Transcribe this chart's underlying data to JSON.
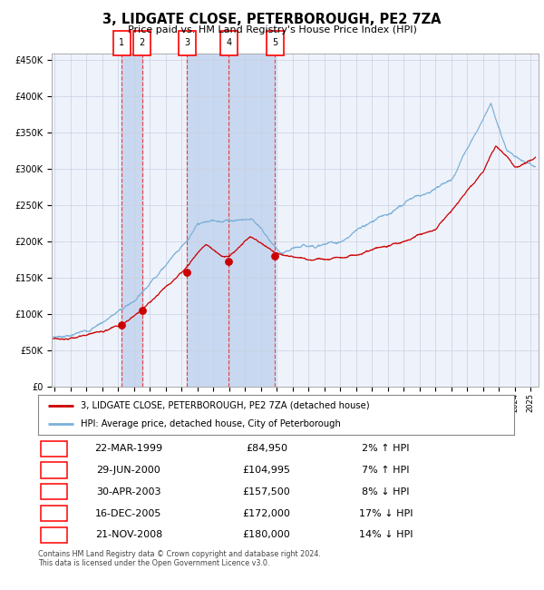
{
  "title": "3, LIDGATE CLOSE, PETERBOROUGH, PE2 7ZA",
  "subtitle": "Price paid vs. HM Land Registry's House Price Index (HPI)",
  "legend_label_red": "3, LIDGATE CLOSE, PETERBOROUGH, PE2 7ZA (detached house)",
  "legend_label_blue": "HPI: Average price, detached house, City of Peterborough",
  "footer1": "Contains HM Land Registry data © Crown copyright and database right 2024.",
  "footer2": "This data is licensed under the Open Government Licence v3.0.",
  "transactions": [
    {
      "id": 1,
      "date": "22-MAR-1999",
      "price": 84950,
      "pct": "2%",
      "dir": "↑",
      "year": 1999.22
    },
    {
      "id": 2,
      "date": "29-JUN-2000",
      "price": 104995,
      "pct": "7%",
      "dir": "↑",
      "year": 2000.5
    },
    {
      "id": 3,
      "date": "30-APR-2003",
      "price": 157500,
      "pct": "8%",
      "dir": "↓",
      "year": 2003.33
    },
    {
      "id": 4,
      "date": "16-DEC-2005",
      "price": 172000,
      "pct": "17%",
      "dir": "↓",
      "year": 2005.96
    },
    {
      "id": 5,
      "date": "21-NOV-2008",
      "price": 180000,
      "pct": "14%",
      "dir": "↓",
      "year": 2008.89
    }
  ],
  "ylim": [
    0,
    460000
  ],
  "xlim_start": 1994.8,
  "xlim_end": 2025.5,
  "plot_bg_color": "#eef2fb",
  "grid_color": "#c8d0e0",
  "red_line_color": "#cc0000",
  "blue_line_color": "#7ab0d8",
  "dashed_color": "#ee3333",
  "shaded_color": "#c8d8f0"
}
